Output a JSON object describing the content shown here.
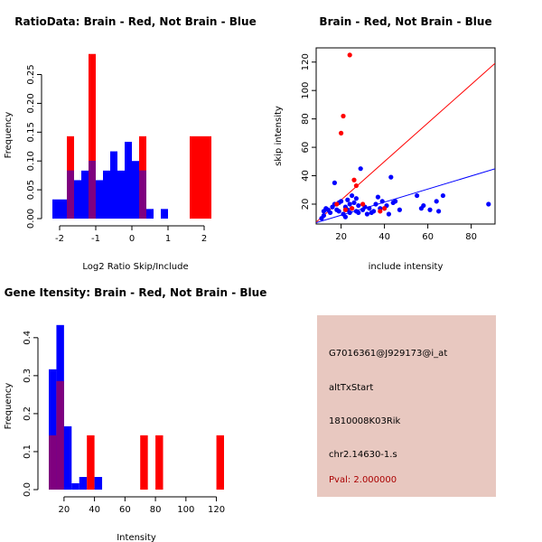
{
  "colors": {
    "red": "#ff0000",
    "blue": "#0000ff",
    "overlap": "#7f007f",
    "box": "#e8c8c0",
    "pval": "#aa0000"
  },
  "chart_data": [
    {
      "type": "bar",
      "title": "RatioData: Brain - Red, Not Brain - Blue",
      "xlabel": "Log2 Ratio Skip/Include",
      "ylabel": "Frequency",
      "xlim": [
        -2.2,
        2.4
      ],
      "ylim": [
        0,
        0.29
      ],
      "xticks": [
        -2,
        -1,
        0,
        1,
        2
      ],
      "yticks": [
        0.0,
        0.05,
        0.1,
        0.15,
        0.2,
        0.25
      ],
      "ytick_labels": [
        "0.00",
        "0.05",
        "0.10",
        "0.15",
        "0.20",
        "0.25"
      ],
      "bin_edges": [
        -2.2,
        -2.0,
        -1.8,
        -1.6,
        -1.4,
        -1.2,
        -1.0,
        -0.8,
        -0.6,
        -0.4,
        -0.2,
        0.0,
        0.2,
        0.4,
        0.6,
        0.8,
        1.0,
        1.2,
        1.4,
        1.6,
        1.8,
        2.0,
        2.2,
        2.4
      ],
      "series": [
        {
          "name": "Brain",
          "color": "red",
          "values": [
            0,
            0,
            0.1429,
            0,
            0,
            0.2857,
            0,
            0,
            0,
            0,
            0,
            0,
            0.1429,
            0,
            0,
            0,
            0,
            0,
            0,
            0.1429,
            0.1429,
            0.1429,
            0
          ]
        },
        {
          "name": "Not Brain",
          "color": "blue",
          "values": [
            0.0333,
            0.0333,
            0.0833,
            0.0667,
            0.0833,
            0.1,
            0.0667,
            0.0833,
            0.1167,
            0.0833,
            0.1333,
            0.1,
            0.0833,
            0.0167,
            0,
            0.0167,
            0,
            0,
            0,
            0,
            0,
            0,
            0
          ]
        }
      ]
    },
    {
      "type": "scatter",
      "title": "Brain - Red, Not Brain - Blue",
      "xlabel": "include intensity",
      "ylabel": "skip intensity",
      "xlim": [
        8.5,
        91
      ],
      "ylim": [
        6,
        130
      ],
      "xticks": [
        20,
        40,
        60,
        80
      ],
      "yticks": [
        20,
        40,
        60,
        80,
        100,
        120
      ],
      "series": [
        {
          "name": "Brain",
          "color": "red",
          "points": [
            [
              24,
              125
            ],
            [
              21,
              82
            ],
            [
              20,
              70
            ],
            [
              26,
              37
            ],
            [
              27,
              33
            ],
            [
              40,
              17
            ],
            [
              38,
              15
            ],
            [
              25,
              17
            ],
            [
              18,
              20
            ],
            [
              22,
              16
            ],
            [
              30,
              20
            ]
          ],
          "fit_line": {
            "slope": 1.355,
            "intercept": -4.2
          }
        },
        {
          "name": "Not Brain",
          "color": "blue",
          "points": [
            [
              11,
              10
            ],
            [
              12,
              12
            ],
            [
              12,
              15
            ],
            [
              13,
              17
            ],
            [
              14,
              16
            ],
            [
              15,
              14
            ],
            [
              16,
              18
            ],
            [
              17,
              20
            ],
            [
              17,
              35
            ],
            [
              18,
              16
            ],
            [
              19,
              21
            ],
            [
              19,
              15
            ],
            [
              20,
              22
            ],
            [
              21,
              13
            ],
            [
              22,
              11
            ],
            [
              22,
              18
            ],
            [
              23,
              16
            ],
            [
              23,
              23
            ],
            [
              24,
              14
            ],
            [
              24,
              20
            ],
            [
              25,
              17
            ],
            [
              25,
              26
            ],
            [
              26,
              21
            ],
            [
              27,
              15
            ],
            [
              27,
              24
            ],
            [
              28,
              19
            ],
            [
              28,
              14
            ],
            [
              29,
              45
            ],
            [
              30,
              16
            ],
            [
              31,
              18
            ],
            [
              32,
              13
            ],
            [
              33,
              17
            ],
            [
              34,
              14
            ],
            [
              35,
              15
            ],
            [
              36,
              20
            ],
            [
              37,
              25
            ],
            [
              38,
              17
            ],
            [
              39,
              22
            ],
            [
              40,
              17
            ],
            [
              41,
              19
            ],
            [
              42,
              13
            ],
            [
              43,
              39
            ],
            [
              44,
              21
            ],
            [
              45,
              22
            ],
            [
              47,
              16
            ],
            [
              55,
              26
            ],
            [
              57,
              17
            ],
            [
              58,
              19
            ],
            [
              61,
              16
            ],
            [
              64,
              22
            ],
            [
              65,
              15
            ],
            [
              67,
              26
            ],
            [
              88,
              20
            ]
          ],
          "fit_line": {
            "slope": 0.46,
            "intercept": 3.0
          }
        }
      ]
    },
    {
      "type": "bar",
      "title": "Gene Itensity: Brain - Red, Not Brain - Blue",
      "xlabel": "Intensity",
      "ylabel": "Frequency",
      "xlim": [
        10,
        125
      ],
      "ylim": [
        0,
        0.44
      ],
      "xticks": [
        20,
        40,
        60,
        80,
        100,
        120
      ],
      "yticks": [
        0.0,
        0.1,
        0.2,
        0.3,
        0.4
      ],
      "ytick_labels": [
        "0.0",
        "0.1",
        "0.2",
        "0.3",
        "0.4"
      ],
      "bin_edges": [
        10,
        15,
        20,
        25,
        30,
        35,
        40,
        45,
        50,
        55,
        60,
        65,
        70,
        75,
        80,
        85,
        90,
        95,
        100,
        105,
        110,
        115,
        120,
        125
      ],
      "series": [
        {
          "name": "Brain",
          "color": "red",
          "values": [
            0.1429,
            0.2857,
            0,
            0,
            0,
            0.1429,
            0,
            0,
            0,
            0,
            0,
            0,
            0.1429,
            0,
            0.1429,
            0,
            0,
            0,
            0,
            0,
            0,
            0,
            0.1429
          ]
        },
        {
          "name": "Not Brain",
          "color": "blue",
          "values": [
            0.3167,
            0.4333,
            0.1667,
            0.0167,
            0.0333,
            0,
            0.0333,
            0,
            0,
            0,
            0,
            0,
            0,
            0,
            0,
            0,
            0,
            0,
            0,
            0,
            0,
            0,
            0
          ]
        }
      ]
    }
  ],
  "info": {
    "probe": "G7016361@J929173@i_at",
    "event": "altTxStart",
    "gene": "1810008K03Rik",
    "location": "chr2.14630-1.s",
    "pval": "Pval: 2.000000"
  }
}
